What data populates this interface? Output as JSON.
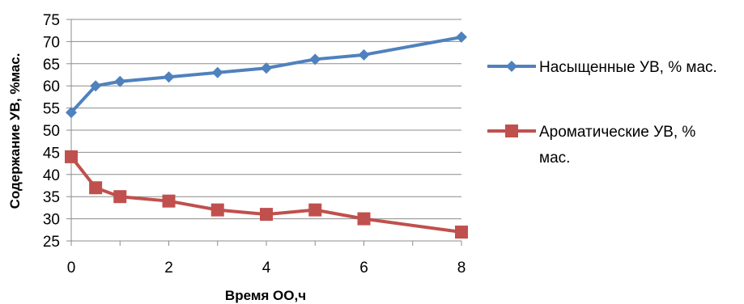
{
  "chart_data": {
    "type": "line",
    "title": "",
    "xlabel": "Время ОО,ч",
    "ylabel": "Содержание УВ, %мас.",
    "xlim": [
      0,
      8
    ],
    "ylim": [
      25,
      75
    ],
    "xticks": [
      0,
      2,
      4,
      6,
      8
    ],
    "yticks": [
      25,
      30,
      35,
      40,
      45,
      50,
      55,
      60,
      65,
      70,
      75
    ],
    "grid": "horizontal",
    "legend_position": "right",
    "series": [
      {
        "name": "Насыщенные УВ, % мас.",
        "legend_lines": [
          "Насыщенные УВ, % мас."
        ],
        "color": "#4F81BD",
        "marker": "diamond",
        "x": [
          0,
          0.5,
          1,
          2,
          3,
          4,
          5,
          6,
          8
        ],
        "y": [
          54,
          60,
          61,
          62,
          63,
          64,
          66,
          67,
          71
        ]
      },
      {
        "name": "Ароматические УВ, % мас.",
        "legend_lines": [
          "Ароматические УВ, %",
          "мас."
        ],
        "color": "#C0504D",
        "marker": "square",
        "x": [
          0,
          0.5,
          1,
          2,
          3,
          4,
          5,
          6,
          8
        ],
        "y": [
          44,
          37,
          35,
          34,
          32,
          31,
          32,
          30,
          27
        ]
      }
    ]
  }
}
